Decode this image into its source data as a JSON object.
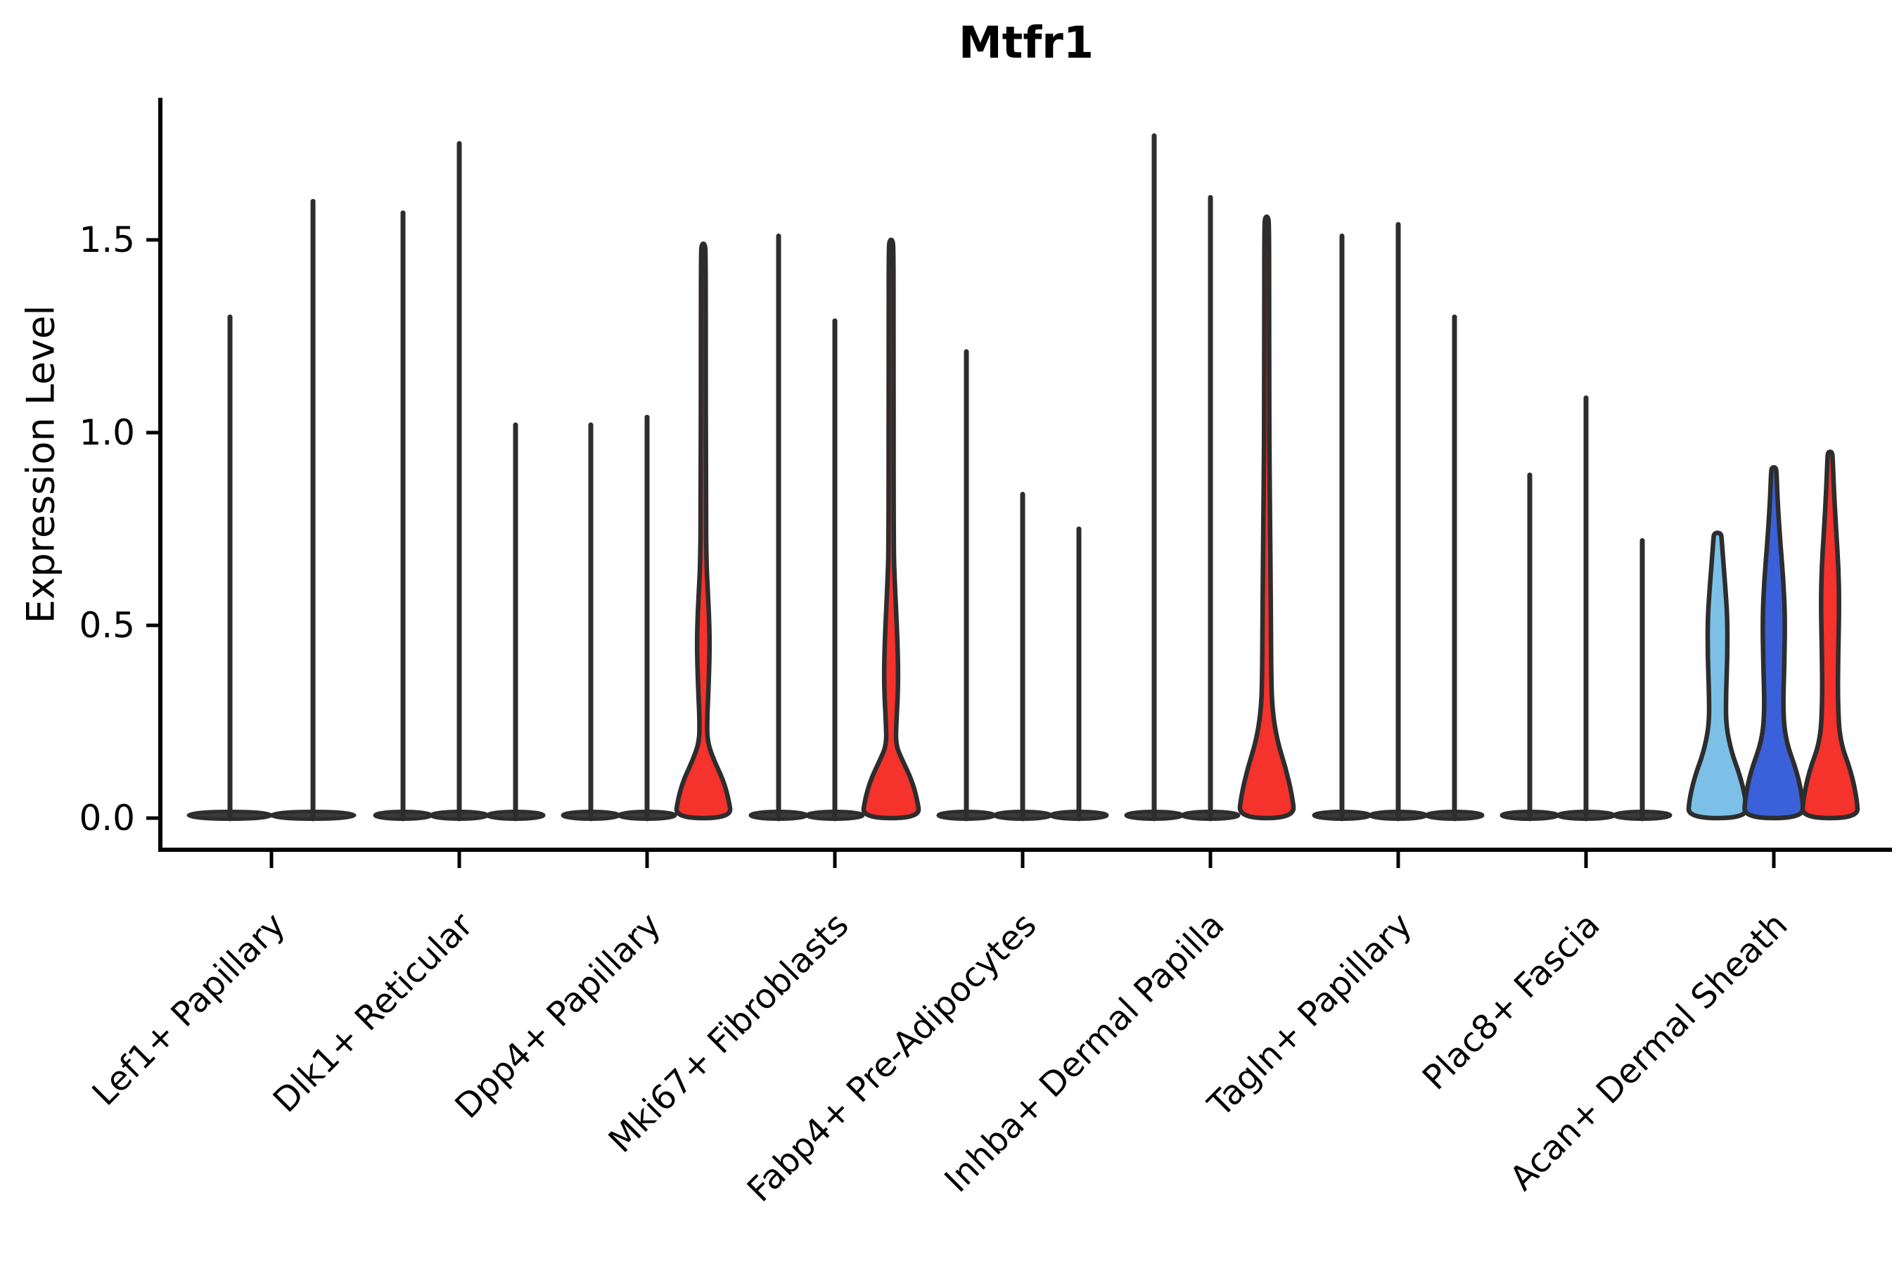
{
  "chart_data": {
    "type": "violin",
    "title": "Mtfr1",
    "ylabel": "Expression Level",
    "xlabel": "",
    "grid": false,
    "legend": "none",
    "ylim": [
      -0.08,
      1.88
    ],
    "yticks": [
      {
        "label": "0.0",
        "value": 0.0
      },
      {
        "label": "0.5",
        "value": 0.5
      },
      {
        "label": "1.0",
        "value": 1.0
      },
      {
        "label": "1.5",
        "value": 1.5
      }
    ],
    "colors": {
      "red": "#f5322b",
      "blue": "#3a61d9",
      "lightblue": "#7cc0e8",
      "outline": "#2d2d2d",
      "pancake_fill": "#3b3b3b",
      "axis": "#000000"
    },
    "categories": [
      "Lef1+ Papillary",
      "Dlk1+ Reticular",
      "Dpp4+ Papillary",
      "Mki67+ Fibroblasts",
      "Fabp4+ Pre-Adipocytes",
      "Inhba+ Dermal Papilla",
      "Tagln+ Papillary",
      "Plac8+ Fascia",
      "Acan+ Dermal Sheath"
    ],
    "groups": [
      {
        "category": "Lef1+ Papillary",
        "violins": [
          {
            "style": "thin",
            "max": 1.3
          },
          {
            "style": "thin",
            "max": 1.6
          }
        ]
      },
      {
        "category": "Dlk1+ Reticular",
        "violins": [
          {
            "style": "thin",
            "max": 1.57
          },
          {
            "style": "thin",
            "max": 1.75
          },
          {
            "style": "thin",
            "max": 1.02
          }
        ]
      },
      {
        "category": "Dpp4+ Papillary",
        "violins": [
          {
            "style": "thin",
            "max": 1.02
          },
          {
            "style": "thin",
            "max": 1.04
          },
          {
            "style": "shaped",
            "max": 1.49,
            "color": "red",
            "profile": [
              [
                0,
                40
              ],
              [
                0.05,
                36
              ],
              [
                0.1,
                28
              ],
              [
                0.15,
                15
              ],
              [
                0.2,
                5.5
              ],
              [
                0.26,
                5.5
              ],
              [
                0.32,
                7
              ],
              [
                0.4,
                8.5
              ],
              [
                0.46,
                9
              ],
              [
                0.53,
                8
              ],
              [
                0.6,
                6
              ],
              [
                0.66,
                4.5
              ],
              [
                0.8,
                3.5
              ],
              [
                1.3,
                3.5
              ],
              [
                1.46,
                3.2
              ],
              [
                1.49,
                2.5
              ]
            ]
          }
        ]
      },
      {
        "category": "Mki67+ Fibroblasts",
        "violins": [
          {
            "style": "thin",
            "max": 1.51
          },
          {
            "style": "thin",
            "max": 1.29
          },
          {
            "style": "shaped",
            "max": 1.5,
            "color": "red",
            "profile": [
              [
                0,
                41
              ],
              [
                0.05,
                37
              ],
              [
                0.1,
                29
              ],
              [
                0.15,
                16
              ],
              [
                0.19,
                6.5
              ],
              [
                0.25,
                7.5
              ],
              [
                0.32,
                9.5
              ],
              [
                0.38,
                10
              ],
              [
                0.46,
                9
              ],
              [
                0.54,
                7
              ],
              [
                0.62,
                5
              ],
              [
                0.7,
                3.5
              ],
              [
                1.35,
                3.5
              ],
              [
                1.47,
                3.2
              ],
              [
                1.5,
                2.5
              ]
            ]
          }
        ]
      },
      {
        "category": "Fabp4+ Pre-Adipocytes",
        "violins": [
          {
            "style": "thin",
            "max": 1.21
          },
          {
            "style": "thin",
            "max": 0.84
          },
          {
            "style": "thin",
            "max": 0.75
          }
        ]
      },
      {
        "category": "Inhba+ Dermal Papilla",
        "violins": [
          {
            "style": "thin",
            "max": 1.77
          },
          {
            "style": "thin",
            "max": 1.61
          },
          {
            "style": "shaped",
            "max": 1.56,
            "color": "red",
            "profile": [
              [
                0,
                40
              ],
              [
                0.06,
                36
              ],
              [
                0.13,
                27
              ],
              [
                0.2,
                15
              ],
              [
                0.28,
                8
              ],
              [
                0.36,
                6.5
              ],
              [
                0.5,
                6
              ],
              [
                0.62,
                5.5
              ],
              [
                0.72,
                5
              ],
              [
                0.82,
                4.5
              ],
              [
                0.92,
                4
              ],
              [
                1.05,
                3.5
              ],
              [
                1.4,
                3.5
              ],
              [
                1.53,
                3.2
              ],
              [
                1.56,
                2.5
              ]
            ]
          }
        ]
      },
      {
        "category": "Tagln+ Papillary",
        "violins": [
          {
            "style": "thin",
            "max": 1.51
          },
          {
            "style": "thin",
            "max": 1.54
          },
          {
            "style": "thin",
            "max": 1.3
          }
        ]
      },
      {
        "category": "Plac8+ Fascia",
        "violins": [
          {
            "style": "thin",
            "max": 0.89
          },
          {
            "style": "thin",
            "max": 1.09
          },
          {
            "style": "thin",
            "max": 0.72
          }
        ]
      },
      {
        "category": "Acan+ Dermal Sheath",
        "violins": [
          {
            "style": "shaped",
            "max": 0.74,
            "color": "lightblue",
            "profile": [
              [
                0,
                42
              ],
              [
                0.05,
                40
              ],
              [
                0.11,
                32
              ],
              [
                0.17,
                20
              ],
              [
                0.24,
                12
              ],
              [
                0.32,
                12
              ],
              [
                0.42,
                14
              ],
              [
                0.52,
                14
              ],
              [
                0.6,
                11
              ],
              [
                0.67,
                8
              ],
              [
                0.72,
                6
              ],
              [
                0.74,
                5
              ]
            ]
          },
          {
            "style": "shaped",
            "max": 0.91,
            "color": "blue",
            "profile": [
              [
                0,
                42
              ],
              [
                0.05,
                41
              ],
              [
                0.12,
                33
              ],
              [
                0.2,
                17
              ],
              [
                0.28,
                13
              ],
              [
                0.4,
                15
              ],
              [
                0.52,
                16
              ],
              [
                0.62,
                13.5
              ],
              [
                0.72,
                9
              ],
              [
                0.82,
                5.5
              ],
              [
                0.89,
                4
              ],
              [
                0.91,
                3.2
              ]
            ]
          },
          {
            "style": "shaped",
            "max": 0.95,
            "color": "red",
            "profile": [
              [
                0,
                40
              ],
              [
                0.05,
                38
              ],
              [
                0.12,
                30
              ],
              [
                0.2,
                14
              ],
              [
                0.3,
                11
              ],
              [
                0.42,
                11.5
              ],
              [
                0.55,
                13
              ],
              [
                0.65,
                12
              ],
              [
                0.75,
                8.5
              ],
              [
                0.85,
                5.5
              ],
              [
                0.93,
                3.8
              ],
              [
                0.95,
                3
              ]
            ]
          }
        ]
      }
    ]
  }
}
